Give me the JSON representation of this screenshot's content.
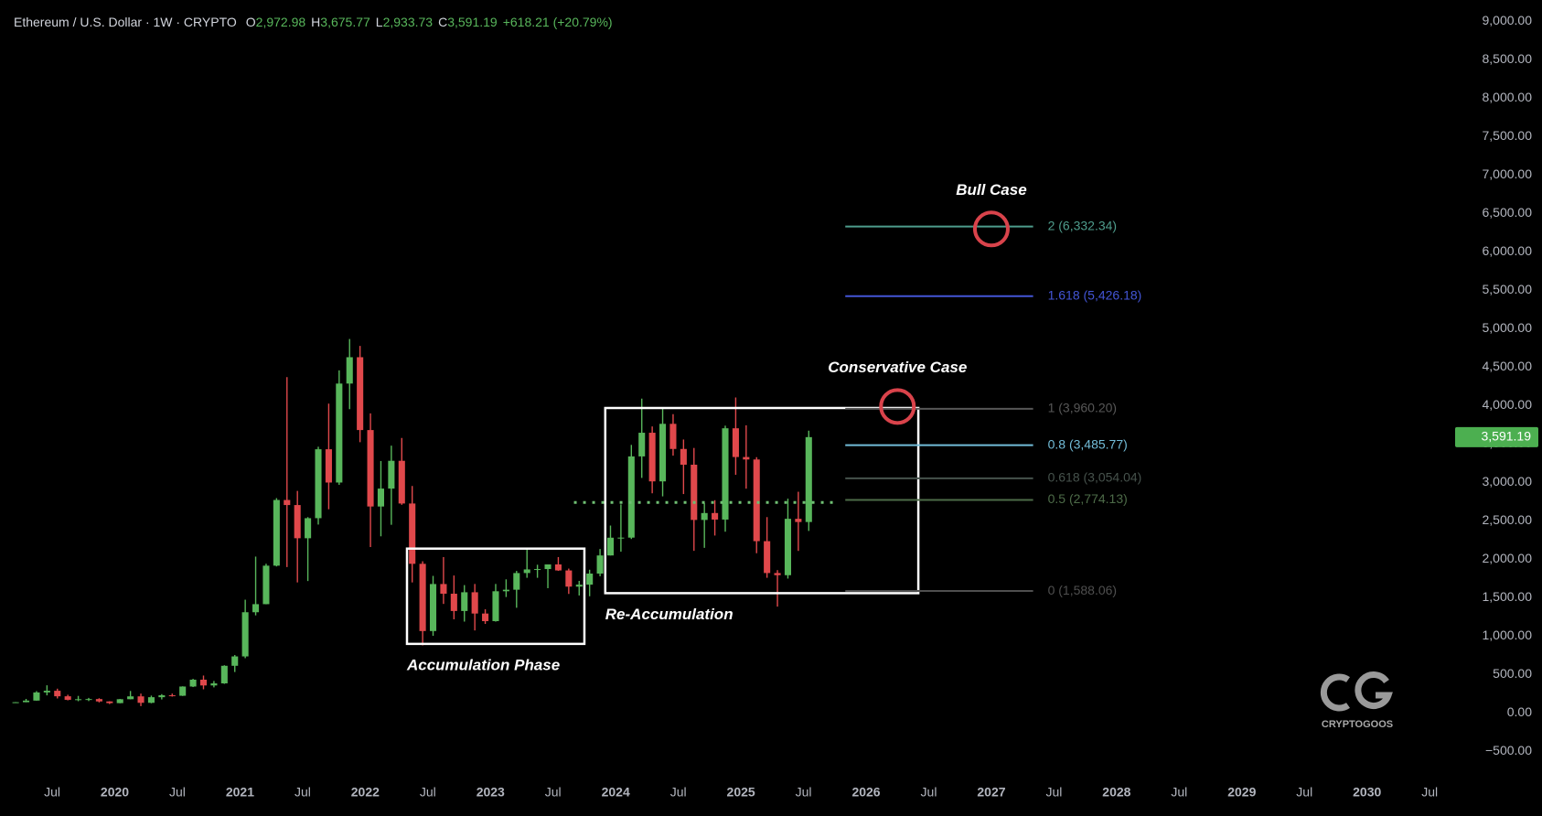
{
  "chart_data": {
    "type": "candlestick",
    "header": {
      "symbol": "Ethereum / U.S. Dollar · 1W · CRYPTO",
      "ohlc": [
        {
          "key": "O",
          "label": "2,972.98"
        },
        {
          "key": "H",
          "label": "3,675.77"
        },
        {
          "key": "L",
          "label": "2,933.73"
        },
        {
          "key": "C",
          "label": "3,591.19"
        }
      ],
      "change": "+618.21 (+20.79%)"
    },
    "x": [
      "2019-03",
      "2019-04",
      "2019-05",
      "2019-06",
      "2019-07",
      "2019-08",
      "2019-09",
      "2019-10",
      "2019-11",
      "2019-12",
      "2020-01",
      "2020-02",
      "2020-03",
      "2020-04",
      "2020-05",
      "2020-06",
      "2020-07",
      "2020-08",
      "2020-09",
      "2020-10",
      "2020-11",
      "2020-12",
      "2021-01",
      "2021-02",
      "2021-03",
      "2021-04",
      "2021-05",
      "2021-06",
      "2021-07",
      "2021-08",
      "2021-09",
      "2021-10",
      "2021-11",
      "2021-12",
      "2022-01",
      "2022-02",
      "2022-03",
      "2022-04",
      "2022-05",
      "2022-06",
      "2022-07",
      "2022-08",
      "2022-09",
      "2022-10",
      "2022-11",
      "2022-12",
      "2023-01",
      "2023-02",
      "2023-03",
      "2023-04",
      "2023-05",
      "2023-06",
      "2023-07",
      "2023-08",
      "2023-09",
      "2023-10",
      "2023-11",
      "2023-12",
      "2024-01",
      "2024-02",
      "2024-03",
      "2024-04",
      "2024-05",
      "2024-06",
      "2024-07",
      "2024-08",
      "2024-09",
      "2024-10",
      "2024-11",
      "2024-12",
      "2025-01",
      "2025-02",
      "2025-03",
      "2025-04",
      "2025-05",
      "2025-06",
      "2025-07"
    ],
    "open": [
      137,
      141,
      162,
      268,
      290,
      218,
      172,
      180,
      182,
      151,
      129,
      180,
      217,
      133,
      206,
      231,
      225,
      345,
      434,
      359,
      386,
      615,
      737,
      1312,
      1417,
      1918,
      2773,
      2707,
      2275,
      2536,
      3433,
      3000,
      4288,
      4631,
      3683,
      2688,
      2921,
      3283,
      2727,
      1942,
      1067,
      1679,
      1553,
      1328,
      1572,
      1295,
      1196,
      1585,
      1605,
      1822,
      1869,
      1874,
      1934,
      1856,
      1645,
      1671,
      1815,
      2051,
      2282,
      2283,
      3340,
      3648,
      3015,
      3764,
      3437,
      3232,
      2513,
      2603,
      2518,
      3706,
      3332,
      3300,
      2237,
      1822,
      1794,
      2528,
      2486
    ],
    "high": [
      143,
      184,
      285,
      361,
      317,
      238,
      223,
      197,
      193,
      154,
      183,
      287,
      253,
      227,
      246,
      253,
      348,
      445,
      488,
      417,
      622,
      755,
      1475,
      2036,
      1943,
      2797,
      4372,
      2891,
      2550,
      3466,
      4027,
      4460,
      4868,
      4778,
      3900,
      3280,
      3480,
      3580,
      2955,
      1975,
      1785,
      2030,
      1790,
      1665,
      1680,
      1350,
      1680,
      1740,
      1850,
      2140,
      1930,
      1930,
      2030,
      1880,
      1720,
      1865,
      2135,
      2440,
      2715,
      3490,
      4092,
      3730,
      3975,
      3890,
      3560,
      3450,
      2730,
      2770,
      3740,
      4107,
      3745,
      3330,
      2550,
      1860,
      2790,
      2880,
      3675
    ],
    "low": [
      130,
      140,
      160,
      230,
      190,
      165,
      154,
      156,
      138,
      117,
      127,
      178,
      90,
      127,
      177,
      214,
      222,
      338,
      309,
      334,
      380,
      534,
      714,
      1271,
      1415,
      1908,
      1900,
      1700,
      1718,
      2453,
      2652,
      2970,
      3955,
      3525,
      2160,
      2300,
      2450,
      2710,
      1700,
      880,
      1005,
      1420,
      1220,
      1190,
      1075,
      1160,
      1190,
      1510,
      1370,
      1760,
      1760,
      1625,
      1850,
      1550,
      1530,
      1520,
      1780,
      2050,
      2100,
      2265,
      3060,
      2860,
      2820,
      3350,
      2850,
      2111,
      2150,
      2310,
      2360,
      3100,
      2920,
      2080,
      1760,
      1385,
      1750,
      2110,
      2370
    ],
    "close": [
      141,
      162,
      268,
      290,
      218,
      172,
      180,
      182,
      151,
      129,
      180,
      217,
      133,
      206,
      231,
      225,
      345,
      434,
      359,
      386,
      615,
      737,
      1312,
      1417,
      1918,
      2773,
      2707,
      2275,
      2536,
      3433,
      3000,
      4288,
      4631,
      3683,
      2688,
      2921,
      3283,
      2727,
      1942,
      1067,
      1679,
      1553,
      1328,
      1572,
      1295,
      1196,
      1585,
      1605,
      1822,
      1869,
      1874,
      1934,
      1856,
      1645,
      1671,
      1815,
      2051,
      2282,
      2283,
      3340,
      3648,
      3015,
      3764,
      3437,
      3232,
      2513,
      2603,
      2518,
      3706,
      3332,
      3300,
      2237,
      1822,
      1794,
      2528,
      2486,
      3591
    ],
    "up_color": "#58b65b",
    "down_color": "#e0484b",
    "xlim": [
      "2019-02",
      "2030-09"
    ],
    "xticks": [
      {
        "value": "2019-07",
        "label": "Jul"
      },
      {
        "value": "2020-01",
        "label": "2020"
      },
      {
        "value": "2020-07",
        "label": "Jul"
      },
      {
        "value": "2021-01",
        "label": "2021"
      },
      {
        "value": "2021-07",
        "label": "Jul"
      },
      {
        "value": "2022-01",
        "label": "2022"
      },
      {
        "value": "2022-07",
        "label": "Jul"
      },
      {
        "value": "2023-01",
        "label": "2023"
      },
      {
        "value": "2023-07",
        "label": "Jul"
      },
      {
        "value": "2024-01",
        "label": "2024"
      },
      {
        "value": "2024-07",
        "label": "Jul"
      },
      {
        "value": "2025-01",
        "label": "2025"
      },
      {
        "value": "2025-07",
        "label": "Jul"
      },
      {
        "value": "2026-01",
        "label": "2026"
      },
      {
        "value": "2026-07",
        "label": "Jul"
      },
      {
        "value": "2027-01",
        "label": "2027"
      },
      {
        "value": "2027-07",
        "label": "Jul"
      },
      {
        "value": "2028-01",
        "label": "2028"
      },
      {
        "value": "2028-07",
        "label": "Jul"
      },
      {
        "value": "2029-01",
        "label": "2029"
      },
      {
        "value": "2029-07",
        "label": "Jul"
      },
      {
        "value": "2030-01",
        "label": "2030"
      },
      {
        "value": "2030-07",
        "label": "Jul"
      }
    ],
    "ylim": [
      -840,
      9280
    ],
    "yticks": [
      {
        "value": -500,
        "label": "−500.00"
      },
      {
        "value": 0,
        "label": "0.00"
      },
      {
        "value": 500,
        "label": "500.00"
      },
      {
        "value": 1000,
        "label": "1,000.00"
      },
      {
        "value": 1500,
        "label": "1,500.00"
      },
      {
        "value": 2000,
        "label": "2,000.00"
      },
      {
        "value": 2500,
        "label": "2,500.00"
      },
      {
        "value": 3000,
        "label": "3,000.00"
      },
      {
        "value": 3500,
        "label": "3,500.00"
      },
      {
        "value": 4000,
        "label": "4,000.00"
      },
      {
        "value": 4500,
        "label": "4,500.00"
      },
      {
        "value": 5000,
        "label": "5,000.00"
      },
      {
        "value": 5500,
        "label": "5,500.00"
      },
      {
        "value": 6000,
        "label": "6,000.00"
      },
      {
        "value": 6500,
        "label": "6,500.00"
      },
      {
        "value": 7000,
        "label": "7,000.00"
      },
      {
        "value": 7500,
        "label": "7,500.00"
      },
      {
        "value": 8000,
        "label": "8,000.00"
      },
      {
        "value": 8500,
        "label": "8,500.00"
      },
      {
        "value": 9000,
        "label": "9,000.00"
      }
    ],
    "last_price": {
      "value": 3591.19,
      "label": "3,591.19",
      "color": "#4caf50"
    },
    "fib_x": [
      "2025-11",
      "2027-05"
    ],
    "fib_levels": [
      {
        "value": 6332.34,
        "label": "2 (6,332.34)",
        "color": "#4e9c8c"
      },
      {
        "value": 5426.18,
        "label": "1.618 (5,426.18)",
        "color": "#4355d6"
      },
      {
        "value": 3960.2,
        "label": "1 (3,960.20)",
        "color": "#575757"
      },
      {
        "value": 3485.77,
        "label": "0.8 (3,485.77)",
        "color": "#72bcd8"
      },
      {
        "value": 3054.04,
        "label": "0.618 (3,054.04)",
        "color": "#46524c"
      },
      {
        "value": 2774.13,
        "label": "0.5 (2,774.13)",
        "color": "#4d6b48"
      },
      {
        "value": 1588.06,
        "label": "0 (1,588.06)",
        "color": "#4f4f4f"
      }
    ],
    "boxes": [
      {
        "label": "Accumulation Phase",
        "x": [
          "2022-05",
          "2023-10"
        ],
        "y": [
          900,
          2140
        ]
      },
      {
        "label": "Re-Accumulation",
        "x": [
          "2023-12",
          "2026-06"
        ],
        "y": [
          1560,
          3970
        ]
      }
    ],
    "dotted_line": {
      "x": [
        "2023-09",
        "2025-10"
      ],
      "value": 2740,
      "color": "#6fbf73"
    },
    "targets": [
      {
        "label": "Bull Case",
        "x": "2027-01",
        "value": 6300
      },
      {
        "label": "Conservative Case",
        "x": "2026-04",
        "value": 3990
      }
    ],
    "watermark": "CRYPTOGOOS"
  }
}
